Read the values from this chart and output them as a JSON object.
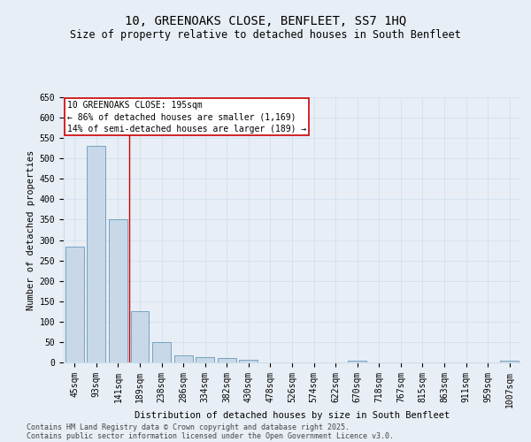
{
  "title_line1": "10, GREENOAKS CLOSE, BENFLEET, SS7 1HQ",
  "title_line2": "Size of property relative to detached houses in South Benfleet",
  "xlabel": "Distribution of detached houses by size in South Benfleet",
  "ylabel": "Number of detached properties",
  "categories": [
    "45sqm",
    "93sqm",
    "141sqm",
    "189sqm",
    "238sqm",
    "286sqm",
    "334sqm",
    "382sqm",
    "430sqm",
    "478sqm",
    "526sqm",
    "574sqm",
    "622sqm",
    "670sqm",
    "718sqm",
    "767sqm",
    "815sqm",
    "863sqm",
    "911sqm",
    "959sqm",
    "1007sqm"
  ],
  "values": [
    283,
    530,
    350,
    125,
    50,
    17,
    12,
    10,
    7,
    0,
    0,
    0,
    0,
    5,
    0,
    0,
    0,
    0,
    0,
    0,
    5
  ],
  "bar_color": "#c8d8e8",
  "bar_edge_color": "#6699bb",
  "vline_x": 2.5,
  "vline_color": "#cc0000",
  "annotation_text": "10 GREENOAKS CLOSE: 195sqm\n← 86% of detached houses are smaller (1,169)\n14% of semi-detached houses are larger (189) →",
  "annotation_box_facecolor": "#ffffff",
  "annotation_box_edgecolor": "#cc0000",
  "ylim": [
    0,
    650
  ],
  "yticks": [
    0,
    50,
    100,
    150,
    200,
    250,
    300,
    350,
    400,
    450,
    500,
    550,
    600,
    650
  ],
  "grid_color": "#ccddee",
  "bg_color": "#e8eef5",
  "footer_line1": "Contains HM Land Registry data © Crown copyright and database right 2025.",
  "footer_line2": "Contains public sector information licensed under the Open Government Licence v3.0.",
  "title_fontsize": 10,
  "subtitle_fontsize": 8.5,
  "axis_label_fontsize": 7.5,
  "tick_fontsize": 7,
  "annotation_fontsize": 7,
  "footer_fontsize": 6
}
